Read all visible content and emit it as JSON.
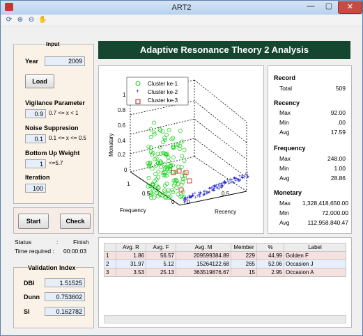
{
  "window": {
    "title": "ART2",
    "close": "✕",
    "min": "—",
    "max": "▢"
  },
  "toolbar": [
    "rotate-icon",
    "zoom-in-icon",
    "zoom-out-icon",
    "pan-icon"
  ],
  "input": {
    "group_label": "Input",
    "year_label": "Year",
    "year_value": "2009",
    "load": "Load",
    "vig_label": "Vigilance Parameter",
    "vig_value": "0.9",
    "vig_hint": "0.7 <= x < 1",
    "noise_label": "Noise Suppresion",
    "noise_value": "0.1",
    "noise_hint": "0.1 <= x <= 0.5",
    "buw_label": "Bottom Up Weight",
    "buw_value": "1",
    "buw_hint": "<=5.7",
    "iter_label": "Iteration",
    "iter_value": "100"
  },
  "actions": {
    "start": "Start",
    "check": "Check"
  },
  "status": {
    "label": "Status",
    "colon": ":",
    "value": "Finish",
    "time_label": "Time required :",
    "time_value": "00:00:03"
  },
  "validation": {
    "title": "Validation Index",
    "dbi_label": "DBI",
    "dbi": "1.51525",
    "dunn_label": "Dunn",
    "dunn": "0.753602",
    "si_label": "SI",
    "si": "0.162782"
  },
  "header": "Adaptive Resonance Theory 2 Analysis",
  "chart_data": {
    "type": "scatter",
    "axes": {
      "x": "Recency",
      "y": "Frequency",
      "z": "Monetary"
    },
    "ticks": {
      "z": [
        "0",
        "0.2",
        "0.4",
        "0.6",
        "0.8",
        "1"
      ],
      "freq": [
        "1",
        "0.5",
        "0"
      ],
      "rec": [
        "0",
        "0.5"
      ]
    },
    "legend": [
      "Cluster ke-1",
      "Cluster ke-2",
      "Cluster ke-3"
    ],
    "colors": [
      "#11cc11",
      "#1a1acc",
      "#cc1111"
    ],
    "axis_labels": {
      "z": "Monatary",
      "x": "Recency",
      "y": "Frequency"
    }
  },
  "summary": {
    "record": {
      "title": "Record",
      "total_label": "Total",
      "total": "509"
    },
    "recency": {
      "title": "Recency",
      "max": "92.00",
      "min": ".00",
      "avg": "17.59"
    },
    "frequency": {
      "title": "Frequency",
      "max": "248.00",
      "min": "1.00",
      "avg": "28.86"
    },
    "monetary": {
      "title": "Monetary",
      "max": "1,328,418,650.00",
      "min": "72,000.00",
      "avg": "112,958,840.47"
    },
    "labels": {
      "max": "Max",
      "min": "Min",
      "avg": "Avg"
    }
  },
  "table": {
    "headers": [
      "",
      "Avg. R",
      "Avg. F",
      "Avg. M",
      "Member",
      "%",
      "Label"
    ],
    "rows": [
      [
        "1",
        "1.86",
        "56.57",
        "209599384.89",
        "229",
        "44.99",
        "Golden F"
      ],
      [
        "2",
        "31.97",
        "5.12",
        "15264122.68",
        "265",
        "52.06",
        "Occasion J"
      ],
      [
        "3",
        "3.53",
        "25.13",
        "363519876.67",
        "15",
        "2.95",
        "Occasion A"
      ]
    ]
  }
}
